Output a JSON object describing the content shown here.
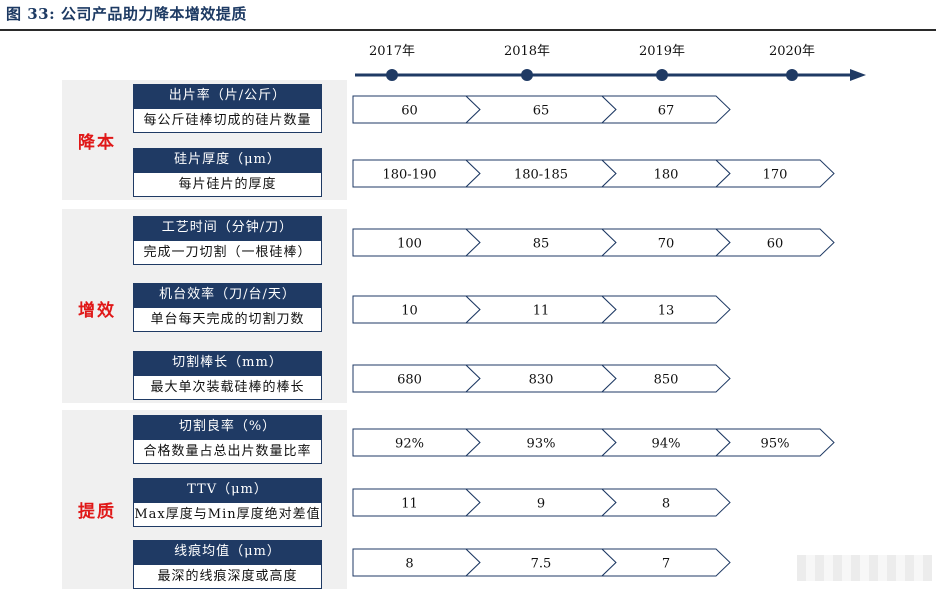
{
  "title": "图 33: 公司产品助力降本增效提质",
  "timeline": {
    "years": [
      "2017年",
      "2018年",
      "2019年",
      "2020年"
    ],
    "colors": {
      "axis": "#1f3a64"
    }
  },
  "groups": [
    {
      "label": "降本",
      "metrics": [
        {
          "title": "出片率（片/公斤）",
          "desc": "每公斤硅棒切成的硅片数量",
          "values": [
            "60",
            "65",
            "67"
          ]
        },
        {
          "title": "硅片厚度（μm）",
          "desc": "每片硅片的厚度",
          "values": [
            "180-190",
            "180-185",
            "180",
            "170"
          ]
        }
      ]
    },
    {
      "label": "增效",
      "metrics": [
        {
          "title": "工艺时间（分钟/刀）",
          "desc": "完成一刀切割（一根硅棒）",
          "values": [
            "100",
            "85",
            "70",
            "60"
          ]
        },
        {
          "title": "机台效率（刀/台/天）",
          "desc": "单台每天完成的切割刀数",
          "values": [
            "10",
            "11",
            "13"
          ]
        },
        {
          "title": "切割棒长（mm）",
          "desc": "最大单次装载硅棒的棒长",
          "values": [
            "680",
            "830",
            "850"
          ]
        }
      ]
    },
    {
      "label": "提质",
      "metrics": [
        {
          "title": "切割良率（%）",
          "desc": "合格数量占总出片数量比率",
          "values": [
            "92%",
            "93%",
            "94%",
            "95%"
          ]
        },
        {
          "title": "TTV（μm）",
          "desc": "Max厚度与Min厚度绝对差值",
          "values": [
            "11",
            "9",
            "8"
          ]
        },
        {
          "title": "线痕均值（μm）",
          "desc": "最深的线痕深度或高度",
          "values": [
            "8",
            "7.5",
            "7"
          ]
        }
      ]
    }
  ],
  "colors": {
    "header_fill": "#1f3a64",
    "group_label": "#e01818",
    "group_bg": "#f0f0f0"
  }
}
